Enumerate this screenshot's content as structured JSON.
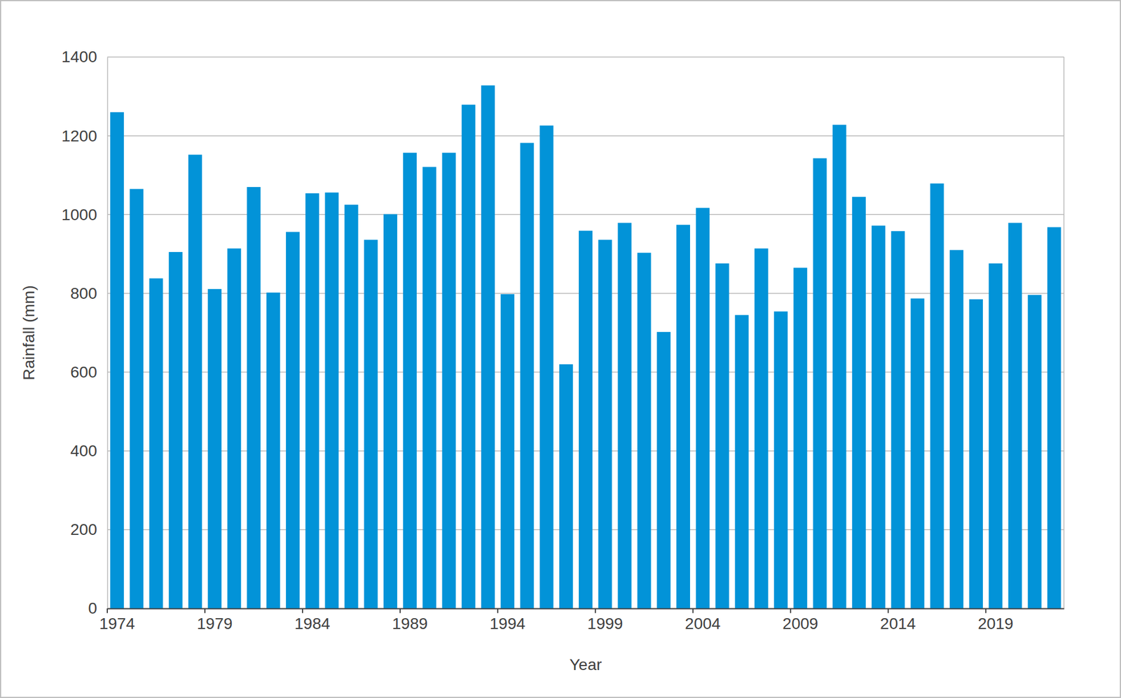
{
  "chart_data": {
    "type": "bar",
    "x_label": "Year",
    "y_label": "Rainfall (mm)",
    "categories": [
      "1974",
      null,
      null,
      null,
      null,
      "1979",
      null,
      null,
      null,
      null,
      "1984",
      null,
      null,
      null,
      null,
      "1989",
      null,
      null,
      null,
      null,
      "1994",
      null,
      null,
      null,
      null,
      "1999",
      null,
      null,
      null,
      null,
      "2004",
      null,
      null,
      null,
      null,
      "2009",
      null,
      null,
      null,
      null,
      "2014",
      null,
      null,
      null,
      null,
      "2019",
      null,
      null,
      null
    ],
    "values": [
      1260,
      1065,
      838,
      905,
      1152,
      811,
      914,
      1070,
      802,
      956,
      1054,
      1056,
      1025,
      936,
      1001,
      1157,
      1121,
      1157,
      1279,
      1328,
      798,
      1182,
      1226,
      620,
      959,
      936,
      979,
      903,
      702,
      974,
      1017,
      876,
      745,
      914,
      754,
      865,
      1143,
      1228,
      1045,
      972,
      958,
      787,
      1079,
      910,
      785,
      876,
      979,
      796,
      968
    ],
    "color": "#0293d8",
    "ylim": [
      0,
      1400
    ],
    "yticks": [
      0,
      200,
      400,
      600,
      800,
      1000,
      1200,
      1400
    ],
    "grid": true
  }
}
